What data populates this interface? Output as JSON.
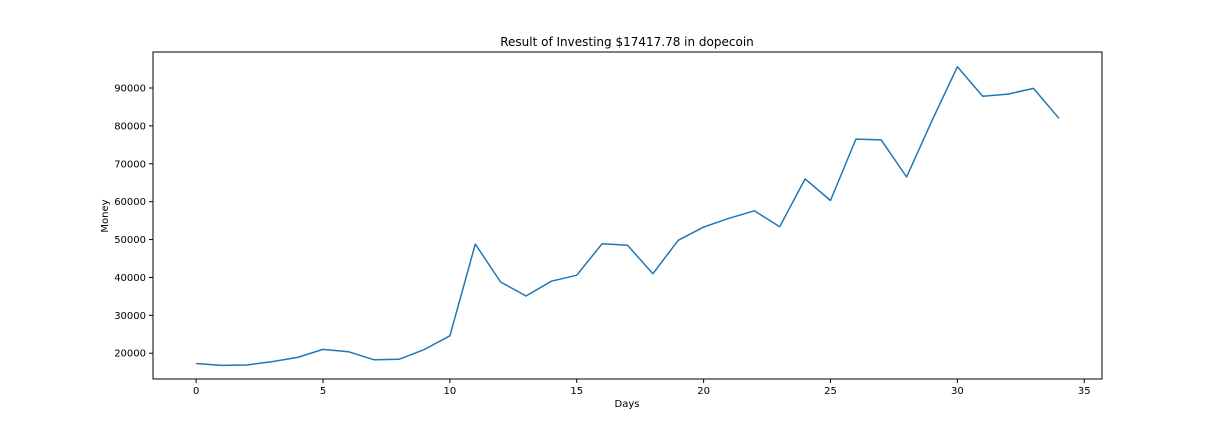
{
  "chart_data": {
    "type": "line",
    "title": "Result of Investing $17417.78 in dopecoin",
    "xlabel": "Days",
    "ylabel": "Money",
    "xlim": [
      -1.7,
      35.7
    ],
    "ylim": [
      13200,
      99500
    ],
    "x_ticks": [
      0,
      5,
      10,
      15,
      20,
      25,
      30,
      35
    ],
    "y_ticks": [
      20000,
      30000,
      40000,
      50000,
      60000,
      70000,
      80000,
      90000
    ],
    "x_tick_labels": [
      "0",
      "5",
      "10",
      "15",
      "20",
      "25",
      "30",
      "35"
    ],
    "y_tick_labels": [
      "20000",
      "30000",
      "40000",
      "50000",
      "60000",
      "70000",
      "80000",
      "90000"
    ],
    "grid": false,
    "legend": "none",
    "series": [
      {
        "color": "#1f77b4",
        "x": [
          0,
          1,
          2,
          3,
          4,
          5,
          6,
          7,
          8,
          9,
          10,
          11,
          12,
          13,
          14,
          15,
          16,
          17,
          18,
          19,
          20,
          21,
          22,
          23,
          24,
          25,
          26,
          27,
          28,
          29,
          30,
          31,
          32,
          33,
          34
        ],
        "values": [
          17300,
          16800,
          16900,
          17800,
          18900,
          21000,
          20400,
          18300,
          18400,
          21000,
          24600,
          48800,
          38800,
          35100,
          39000,
          40600,
          48900,
          48500,
          41000,
          49800,
          53300,
          55600,
          57600,
          53400,
          66000,
          60300,
          76500,
          76300,
          66500,
          81400,
          95600,
          87800,
          88400,
          89900,
          82000
        ]
      }
    ]
  }
}
